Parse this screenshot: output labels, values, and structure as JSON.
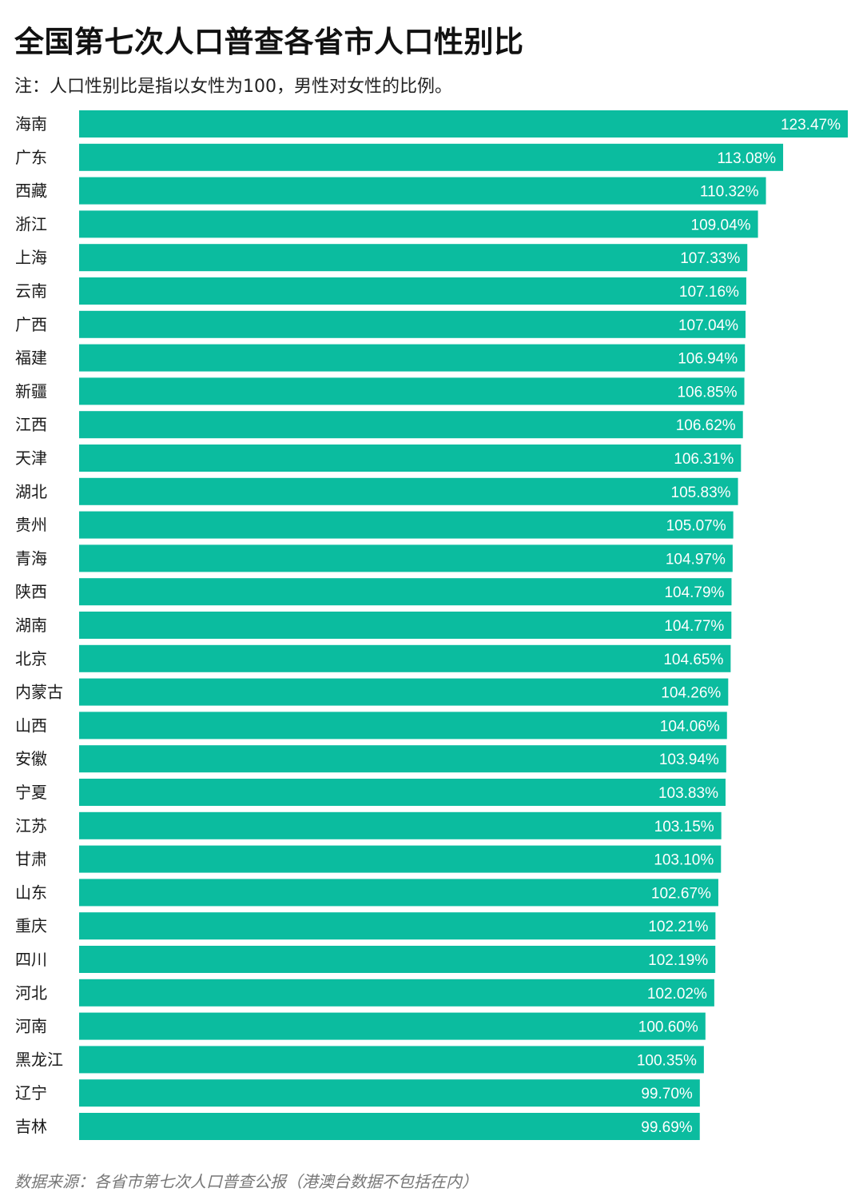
{
  "header": {
    "title": "全国第七次人口普查各省市人口性别比",
    "note": "注：人口性别比是指以女性为100，男性对女性的比例。"
  },
  "footer": {
    "source": "数据来源：各省市第七次人口普查公报（港澳台数据不包括在内）"
  },
  "colors": {
    "bar": "#0bbc9f",
    "bar_label": "#ffffff",
    "category_label": "#1a1a1a"
  },
  "chart_data": {
    "type": "bar",
    "orientation": "horizontal",
    "title": "全国第七次人口普查各省市人口性别比",
    "subtitle": "注：人口性别比是指以女性为100，男性对女性的比例。",
    "unit": "%",
    "categories": [
      "海南",
      "广东",
      "西藏",
      "浙江",
      "上海",
      "云南",
      "广西",
      "福建",
      "新疆",
      "江西",
      "天津",
      "湖北",
      "贵州",
      "青海",
      "陕西",
      "湖南",
      "北京",
      "内蒙古",
      "山西",
      "安徽",
      "宁夏",
      "江苏",
      "甘肃",
      "山东",
      "重庆",
      "四川",
      "河北",
      "河南",
      "黑龙江",
      "辽宁",
      "吉林"
    ],
    "values": [
      123.47,
      113.08,
      110.32,
      109.04,
      107.33,
      107.16,
      107.04,
      106.94,
      106.85,
      106.62,
      106.31,
      105.83,
      105.07,
      104.97,
      104.79,
      104.77,
      104.65,
      104.26,
      104.06,
      103.94,
      103.83,
      103.15,
      103.1,
      102.67,
      102.21,
      102.19,
      102.02,
      100.6,
      100.35,
      99.7,
      99.69
    ],
    "value_labels": [
      "123.47%",
      "113.08%",
      "110.32%",
      "109.04%",
      "107.33%",
      "107.16%",
      "107.04%",
      "106.94%",
      "106.85%",
      "106.62%",
      "106.31%",
      "105.83%",
      "105.07%",
      "104.97%",
      "104.79%",
      "104.77%",
      "104.65%",
      "104.26%",
      "104.06%",
      "103.94%",
      "103.83%",
      "103.15%",
      "103.10%",
      "102.67%",
      "102.21%",
      "102.19%",
      "102.02%",
      "100.60%",
      "100.35%",
      "99.70%",
      "99.69%"
    ],
    "xlim": [
      0,
      123.47
    ],
    "grid": false,
    "legend": "none",
    "data_labels": "inside-end"
  }
}
